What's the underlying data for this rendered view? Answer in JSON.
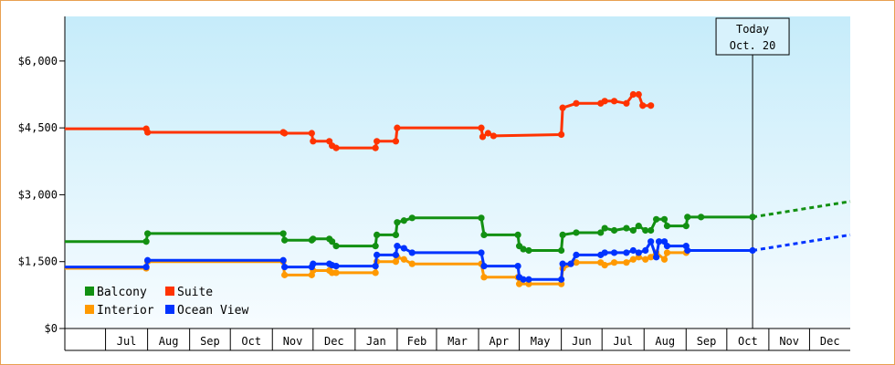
{
  "chart_data": {
    "type": "line",
    "title": "",
    "xlabel": "",
    "ylabel": "",
    "ylim": [
      0,
      7000
    ],
    "y_ticks": [
      {
        "value": 0,
        "label": "$0"
      },
      {
        "value": 1500,
        "label": "$1,500"
      },
      {
        "value": 3000,
        "label": "$3,000"
      },
      {
        "value": 4500,
        "label": "$4,500"
      },
      {
        "value": 6000,
        "label": "$6,000"
      }
    ],
    "x_range": [
      "2023-06-01",
      "2024-12-31"
    ],
    "x_months": [
      {
        "label": "Jul",
        "date": "2023-07-01"
      },
      {
        "label": "Aug",
        "date": "2023-08-01"
      },
      {
        "label": "Sep",
        "date": "2023-09-01"
      },
      {
        "label": "Oct",
        "date": "2023-10-01"
      },
      {
        "label": "Nov",
        "date": "2023-11-01"
      },
      {
        "label": "Dec",
        "date": "2023-12-01"
      },
      {
        "label": "Jan",
        "date": "2024-01-01"
      },
      {
        "label": "Feb",
        "date": "2024-02-01"
      },
      {
        "label": "Mar",
        "date": "2024-03-01"
      },
      {
        "label": "Apr",
        "date": "2024-04-01"
      },
      {
        "label": "May",
        "date": "2024-05-01"
      },
      {
        "label": "Jun",
        "date": "2024-06-01"
      },
      {
        "label": "Jul",
        "date": "2024-07-01"
      },
      {
        "label": "Aug",
        "date": "2024-08-01"
      },
      {
        "label": "Sep",
        "date": "2024-09-01"
      },
      {
        "label": "Oct",
        "date": "2024-10-01"
      },
      {
        "label": "Nov",
        "date": "2024-11-01"
      },
      {
        "label": "Dec",
        "date": "2024-12-01"
      }
    ],
    "today": {
      "date": "2024-10-20",
      "line1": "Today",
      "line2": "Oct. 20"
    },
    "grid": false,
    "background": "light-blue-gradient",
    "legend_position": "bottom-left",
    "series": [
      {
        "name": "Balcony",
        "color": "#129012",
        "points": [
          [
            "2023-06-01",
            1950
          ],
          [
            "2023-07-31",
            1950
          ],
          [
            "2023-08-01",
            2130
          ],
          [
            "2023-11-09",
            2130
          ],
          [
            "2023-11-10",
            1980
          ],
          [
            "2023-11-30",
            1980
          ],
          [
            "2023-12-01",
            2010
          ],
          [
            "2023-12-13",
            2010
          ],
          [
            "2023-12-15",
            1950
          ],
          [
            "2023-12-18",
            1850
          ],
          [
            "2024-01-16",
            1850
          ],
          [
            "2024-01-17",
            2100
          ],
          [
            "2024-01-31",
            2100
          ],
          [
            "2024-02-01",
            2380
          ],
          [
            "2024-02-06",
            2420
          ],
          [
            "2024-02-12",
            2480
          ],
          [
            "2024-04-03",
            2480
          ],
          [
            "2024-04-05",
            2100
          ],
          [
            "2024-04-30",
            2100
          ],
          [
            "2024-05-01",
            1850
          ],
          [
            "2024-05-04",
            1780
          ],
          [
            "2024-05-08",
            1750
          ],
          [
            "2024-06-01",
            1750
          ],
          [
            "2024-06-02",
            2100
          ],
          [
            "2024-06-12",
            2150
          ],
          [
            "2024-06-30",
            2150
          ],
          [
            "2024-07-03",
            2250
          ],
          [
            "2024-07-10",
            2200
          ],
          [
            "2024-07-19",
            2250
          ],
          [
            "2024-07-24",
            2200
          ],
          [
            "2024-07-28",
            2300
          ],
          [
            "2024-08-02",
            2200
          ],
          [
            "2024-08-06",
            2200
          ],
          [
            "2024-08-10",
            2450
          ],
          [
            "2024-08-16",
            2450
          ],
          [
            "2024-08-18",
            2300
          ],
          [
            "2024-09-01",
            2300
          ],
          [
            "2024-09-02",
            2500
          ],
          [
            "2024-09-12",
            2500
          ],
          [
            "2024-10-20",
            2500
          ]
        ],
        "projection": [
          [
            "2024-10-20",
            2500
          ],
          [
            "2024-12-31",
            2850
          ]
        ]
      },
      {
        "name": "Suite",
        "color": "#ff3300",
        "points": [
          [
            "2023-06-01",
            4480
          ],
          [
            "2023-07-31",
            4480
          ],
          [
            "2023-08-01",
            4400
          ],
          [
            "2023-11-09",
            4400
          ],
          [
            "2023-11-10",
            4380
          ],
          [
            "2023-11-30",
            4380
          ],
          [
            "2023-12-01",
            4200
          ],
          [
            "2023-12-13",
            4200
          ],
          [
            "2023-12-15",
            4100
          ],
          [
            "2023-12-18",
            4050
          ],
          [
            "2024-01-16",
            4050
          ],
          [
            "2024-01-17",
            4200
          ],
          [
            "2024-01-31",
            4200
          ],
          [
            "2024-02-01",
            4500
          ],
          [
            "2024-04-03",
            4500
          ],
          [
            "2024-04-04",
            4300
          ],
          [
            "2024-04-08",
            4380
          ],
          [
            "2024-04-12",
            4320
          ],
          [
            "2024-06-01",
            4350
          ],
          [
            "2024-06-02",
            4950
          ],
          [
            "2024-06-12",
            5050
          ],
          [
            "2024-06-30",
            5050
          ],
          [
            "2024-07-03",
            5100
          ],
          [
            "2024-07-10",
            5100
          ],
          [
            "2024-07-19",
            5050
          ],
          [
            "2024-07-24",
            5250
          ],
          [
            "2024-07-28",
            5250
          ],
          [
            "2024-07-31",
            5000
          ],
          [
            "2024-08-06",
            5000
          ]
        ]
      },
      {
        "name": "Interior",
        "color": "#ff9900",
        "points": [
          [
            "2023-06-01",
            1350
          ],
          [
            "2023-07-31",
            1350
          ],
          [
            "2023-08-01",
            1500
          ],
          [
            "2023-11-09",
            1500
          ],
          [
            "2023-11-10",
            1200
          ],
          [
            "2023-11-30",
            1200
          ],
          [
            "2023-12-01",
            1300
          ],
          [
            "2023-12-13",
            1300
          ],
          [
            "2023-12-15",
            1250
          ],
          [
            "2023-12-18",
            1250
          ],
          [
            "2024-01-16",
            1250
          ],
          [
            "2024-01-17",
            1500
          ],
          [
            "2024-01-31",
            1500
          ],
          [
            "2024-02-01",
            1600
          ],
          [
            "2024-02-06",
            1550
          ],
          [
            "2024-02-12",
            1450
          ],
          [
            "2024-04-03",
            1450
          ],
          [
            "2024-04-05",
            1150
          ],
          [
            "2024-04-30",
            1150
          ],
          [
            "2024-05-01",
            1000
          ],
          [
            "2024-05-08",
            1000
          ],
          [
            "2024-06-01",
            1000
          ],
          [
            "2024-06-02",
            1350
          ],
          [
            "2024-06-12",
            1480
          ],
          [
            "2024-06-30",
            1480
          ],
          [
            "2024-07-03",
            1420
          ],
          [
            "2024-07-10",
            1480
          ],
          [
            "2024-07-19",
            1480
          ],
          [
            "2024-07-24",
            1550
          ],
          [
            "2024-07-28",
            1600
          ],
          [
            "2024-08-02",
            1550
          ],
          [
            "2024-08-06",
            1600
          ],
          [
            "2024-08-10",
            1700
          ],
          [
            "2024-08-16",
            1550
          ],
          [
            "2024-08-18",
            1700
          ],
          [
            "2024-09-01",
            1700
          ]
        ]
      },
      {
        "name": "Ocean View",
        "color": "#0033ff",
        "points": [
          [
            "2023-06-01",
            1380
          ],
          [
            "2023-07-31",
            1380
          ],
          [
            "2023-08-01",
            1530
          ],
          [
            "2023-11-09",
            1530
          ],
          [
            "2023-11-10",
            1380
          ],
          [
            "2023-11-30",
            1380
          ],
          [
            "2023-12-01",
            1450
          ],
          [
            "2023-12-13",
            1450
          ],
          [
            "2023-12-15",
            1420
          ],
          [
            "2023-12-18",
            1400
          ],
          [
            "2024-01-16",
            1400
          ],
          [
            "2024-01-17",
            1650
          ],
          [
            "2024-01-31",
            1650
          ],
          [
            "2024-02-01",
            1850
          ],
          [
            "2024-02-06",
            1800
          ],
          [
            "2024-02-12",
            1700
          ],
          [
            "2024-04-03",
            1700
          ],
          [
            "2024-04-05",
            1400
          ],
          [
            "2024-04-30",
            1400
          ],
          [
            "2024-05-01",
            1150
          ],
          [
            "2024-05-04",
            1100
          ],
          [
            "2024-05-08",
            1100
          ],
          [
            "2024-06-01",
            1100
          ],
          [
            "2024-06-02",
            1450
          ],
          [
            "2024-06-08",
            1450
          ],
          [
            "2024-06-12",
            1650
          ],
          [
            "2024-06-30",
            1650
          ],
          [
            "2024-07-03",
            1700
          ],
          [
            "2024-07-10",
            1700
          ],
          [
            "2024-07-19",
            1700
          ],
          [
            "2024-07-24",
            1750
          ],
          [
            "2024-07-28",
            1700
          ],
          [
            "2024-08-02",
            1750
          ],
          [
            "2024-08-06",
            1950
          ],
          [
            "2024-08-10",
            1600
          ],
          [
            "2024-08-12",
            1950
          ],
          [
            "2024-08-16",
            1950
          ],
          [
            "2024-08-18",
            1850
          ],
          [
            "2024-09-01",
            1850
          ],
          [
            "2024-09-02",
            1750
          ],
          [
            "2024-10-20",
            1750
          ]
        ],
        "projection": [
          [
            "2024-10-20",
            1750
          ],
          [
            "2024-12-31",
            2100
          ]
        ]
      }
    ]
  }
}
